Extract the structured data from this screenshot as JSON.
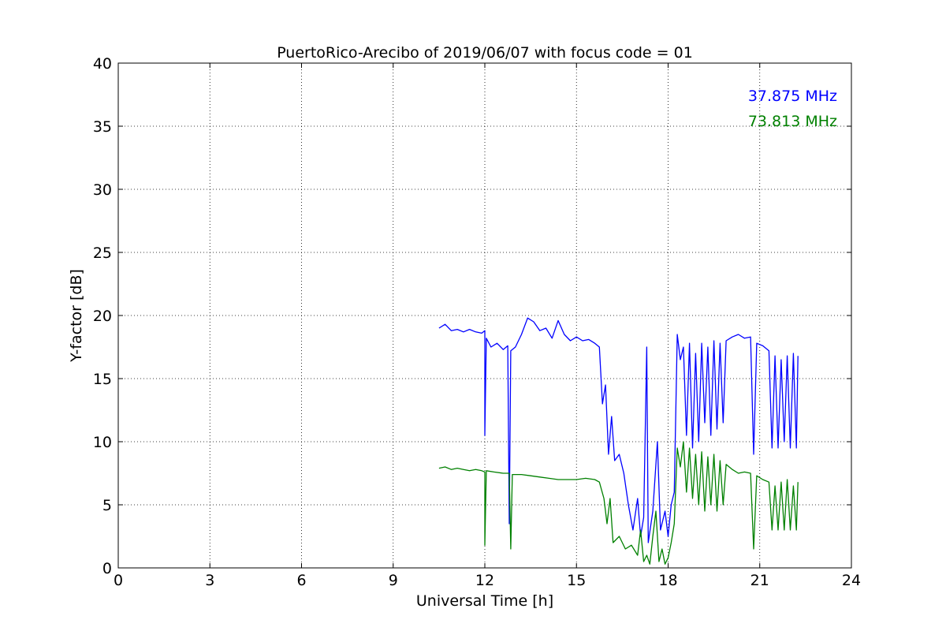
{
  "chart_data": {
    "type": "line",
    "title": "PuertoRico-Arecibo of 2019/06/07 with focus code = 01",
    "xlabel": "Universal Time [h]",
    "ylabel": "Y-factor [dB]",
    "xlim": [
      0,
      24
    ],
    "ylim": [
      0,
      40
    ],
    "xticks": [
      0,
      3,
      6,
      9,
      12,
      15,
      18,
      21,
      24
    ],
    "yticks": [
      0,
      5,
      10,
      15,
      20,
      25,
      30,
      35,
      40
    ],
    "grid": true,
    "legend_position": "top-right",
    "series": [
      {
        "name": "37.875 MHz",
        "color": "#0000ff",
        "points": [
          [
            10.5,
            19.0
          ],
          [
            10.7,
            19.3
          ],
          [
            10.9,
            18.8
          ],
          [
            11.1,
            18.9
          ],
          [
            11.3,
            18.7
          ],
          [
            11.5,
            18.9
          ],
          [
            11.7,
            18.7
          ],
          [
            11.9,
            18.6
          ],
          [
            12.0,
            18.8
          ],
          [
            12.0,
            10.5
          ],
          [
            12.05,
            18.2
          ],
          [
            12.2,
            17.5
          ],
          [
            12.4,
            17.8
          ],
          [
            12.6,
            17.3
          ],
          [
            12.75,
            17.6
          ],
          [
            12.8,
            3.5
          ],
          [
            12.85,
            17.2
          ],
          [
            13.0,
            17.5
          ],
          [
            13.2,
            18.5
          ],
          [
            13.4,
            19.8
          ],
          [
            13.6,
            19.5
          ],
          [
            13.8,
            18.8
          ],
          [
            14.0,
            19.0
          ],
          [
            14.2,
            18.2
          ],
          [
            14.4,
            19.6
          ],
          [
            14.6,
            18.5
          ],
          [
            14.8,
            18.0
          ],
          [
            15.0,
            18.3
          ],
          [
            15.2,
            18.0
          ],
          [
            15.4,
            18.1
          ],
          [
            15.6,
            17.8
          ],
          [
            15.75,
            17.5
          ],
          [
            15.85,
            13.0
          ],
          [
            15.95,
            14.5
          ],
          [
            16.05,
            9.0
          ],
          [
            16.15,
            12.0
          ],
          [
            16.25,
            8.5
          ],
          [
            16.4,
            9.0
          ],
          [
            16.55,
            7.5
          ],
          [
            16.7,
            5.0
          ],
          [
            16.85,
            3.0
          ],
          [
            17.0,
            5.5
          ],
          [
            17.1,
            2.5
          ],
          [
            17.2,
            4.0
          ],
          [
            17.3,
            17.5
          ],
          [
            17.35,
            2.0
          ],
          [
            17.5,
            4.5
          ],
          [
            17.65,
            10.0
          ],
          [
            17.75,
            3.0
          ],
          [
            17.9,
            4.5
          ],
          [
            18.0,
            2.5
          ],
          [
            18.1,
            5.0
          ],
          [
            18.2,
            6.0
          ],
          [
            18.3,
            18.5
          ],
          [
            18.4,
            16.5
          ],
          [
            18.5,
            17.5
          ],
          [
            18.6,
            10.5
          ],
          [
            18.7,
            17.8
          ],
          [
            18.8,
            9.5
          ],
          [
            18.9,
            17.0
          ],
          [
            19.0,
            10.0
          ],
          [
            19.1,
            17.8
          ],
          [
            19.2,
            11.5
          ],
          [
            19.3,
            17.5
          ],
          [
            19.4,
            10.5
          ],
          [
            19.5,
            18.0
          ],
          [
            19.6,
            11.0
          ],
          [
            19.7,
            17.8
          ],
          [
            19.8,
            11.5
          ],
          [
            19.9,
            18.0
          ],
          [
            20.1,
            18.3
          ],
          [
            20.3,
            18.5
          ],
          [
            20.5,
            18.2
          ],
          [
            20.7,
            18.3
          ],
          [
            20.8,
            9.0
          ],
          [
            20.9,
            17.8
          ],
          [
            21.1,
            17.6
          ],
          [
            21.3,
            17.2
          ],
          [
            21.4,
            9.5
          ],
          [
            21.5,
            16.8
          ],
          [
            21.6,
            9.5
          ],
          [
            21.7,
            16.5
          ],
          [
            21.8,
            10.0
          ],
          [
            21.9,
            16.8
          ],
          [
            22.0,
            9.5
          ],
          [
            22.1,
            17.0
          ],
          [
            22.2,
            9.5
          ],
          [
            22.25,
            16.8
          ]
        ]
      },
      {
        "name": "73.813 MHz",
        "color": "#008000",
        "points": [
          [
            10.5,
            7.9
          ],
          [
            10.7,
            8.0
          ],
          [
            10.9,
            7.8
          ],
          [
            11.1,
            7.9
          ],
          [
            11.3,
            7.8
          ],
          [
            11.5,
            7.7
          ],
          [
            11.7,
            7.8
          ],
          [
            11.9,
            7.7
          ],
          [
            12.0,
            7.6
          ],
          [
            12.0,
            1.8
          ],
          [
            12.05,
            7.7
          ],
          [
            12.3,
            7.6
          ],
          [
            12.6,
            7.5
          ],
          [
            12.8,
            7.5
          ],
          [
            12.85,
            1.5
          ],
          [
            12.9,
            7.4
          ],
          [
            13.2,
            7.4
          ],
          [
            13.5,
            7.3
          ],
          [
            13.8,
            7.2
          ],
          [
            14.1,
            7.1
          ],
          [
            14.4,
            7.0
          ],
          [
            14.7,
            7.0
          ],
          [
            15.0,
            7.0
          ],
          [
            15.3,
            7.1
          ],
          [
            15.6,
            7.0
          ],
          [
            15.75,
            6.8
          ],
          [
            15.9,
            5.5
          ],
          [
            16.0,
            3.5
          ],
          [
            16.1,
            5.5
          ],
          [
            16.2,
            2.0
          ],
          [
            16.4,
            2.5
          ],
          [
            16.6,
            1.5
          ],
          [
            16.8,
            1.8
          ],
          [
            17.0,
            1.0
          ],
          [
            17.1,
            3.0
          ],
          [
            17.2,
            0.5
          ],
          [
            17.3,
            1.0
          ],
          [
            17.4,
            0.3
          ],
          [
            17.5,
            2.5
          ],
          [
            17.6,
            4.5
          ],
          [
            17.7,
            0.5
          ],
          [
            17.8,
            1.5
          ],
          [
            17.9,
            0.3
          ],
          [
            18.0,
            0.8
          ],
          [
            18.1,
            2.0
          ],
          [
            18.2,
            3.5
          ],
          [
            18.3,
            9.5
          ],
          [
            18.4,
            8.0
          ],
          [
            18.5,
            10.0
          ],
          [
            18.6,
            6.0
          ],
          [
            18.7,
            9.5
          ],
          [
            18.8,
            5.5
          ],
          [
            18.9,
            9.0
          ],
          [
            19.0,
            5.0
          ],
          [
            19.1,
            9.2
          ],
          [
            19.2,
            4.5
          ],
          [
            19.3,
            8.8
          ],
          [
            19.4,
            5.0
          ],
          [
            19.5,
            9.0
          ],
          [
            19.6,
            4.5
          ],
          [
            19.7,
            8.5
          ],
          [
            19.8,
            5.0
          ],
          [
            19.9,
            8.2
          ],
          [
            20.1,
            7.8
          ],
          [
            20.3,
            7.5
          ],
          [
            20.5,
            7.6
          ],
          [
            20.7,
            7.5
          ],
          [
            20.8,
            1.5
          ],
          [
            20.9,
            7.3
          ],
          [
            21.1,
            7.0
          ],
          [
            21.3,
            6.8
          ],
          [
            21.4,
            3.0
          ],
          [
            21.5,
            6.5
          ],
          [
            21.6,
            3.0
          ],
          [
            21.7,
            6.8
          ],
          [
            21.8,
            3.0
          ],
          [
            21.9,
            7.0
          ],
          [
            22.0,
            3.0
          ],
          [
            22.1,
            6.5
          ],
          [
            22.2,
            3.0
          ],
          [
            22.25,
            6.8
          ]
        ]
      }
    ]
  }
}
